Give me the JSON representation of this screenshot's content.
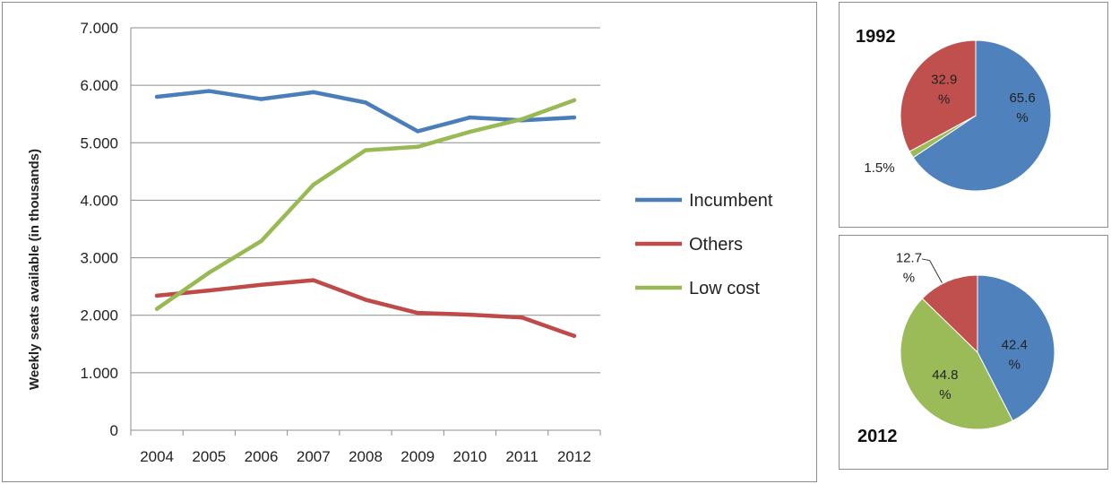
{
  "chart_data": [
    {
      "type": "line",
      "ylabel": "Weekly seats available (in thousands)",
      "xlabel": "",
      "x": [
        2004,
        2005,
        2006,
        2007,
        2008,
        2009,
        2010,
        2011,
        2012
      ],
      "x_tick_labels": [
        "2004",
        "2005",
        "2006",
        "2007",
        "2008",
        "2009",
        "2010",
        "2011",
        "2012"
      ],
      "ylim": [
        0,
        7000
      ],
      "y_ticks": [
        0,
        1000,
        2000,
        3000,
        4000,
        5000,
        6000,
        7000
      ],
      "y_tick_labels": [
        "0",
        "1.000",
        "2.000",
        "3.000",
        "4.000",
        "5.000",
        "6.000",
        "7.000"
      ],
      "grid": "horizontal",
      "legend_position": "right",
      "series": [
        {
          "name": "Incumbent",
          "color": "#4a7ebb",
          "values": [
            5800,
            5900,
            5760,
            5880,
            5700,
            5200,
            5440,
            5390,
            5440
          ]
        },
        {
          "name": "Others",
          "color": "#be4b48",
          "values": [
            2340,
            2430,
            2530,
            2610,
            2270,
            2040,
            2010,
            1960,
            1640
          ]
        },
        {
          "name": "Low cost",
          "color": "#98b954",
          "values": [
            2110,
            2740,
            3290,
            4270,
            4870,
            4930,
            5190,
            5410,
            5740
          ]
        }
      ]
    },
    {
      "type": "pie",
      "title": "1992",
      "slices": [
        {
          "value": 65.6,
          "label_lines": [
            "65.6",
            "%"
          ],
          "color": "#4f81bd"
        },
        {
          "value": 1.5,
          "label_lines": [
            "1.5%"
          ],
          "color": "#9bbb59"
        },
        {
          "value": 32.9,
          "label_lines": [
            "32.9",
            "%"
          ],
          "color": "#c0504d"
        }
      ]
    },
    {
      "type": "pie",
      "title": "2012",
      "slices": [
        {
          "value": 42.4,
          "label_lines": [
            "42.4",
            "%"
          ],
          "color": "#4f81bd"
        },
        {
          "value": 44.8,
          "label_lines": [
            "44.8",
            "%"
          ],
          "color": "#9bbb59"
        },
        {
          "value": 12.7,
          "label_lines": [
            "12.7",
            "%"
          ],
          "color": "#c0504d"
        }
      ]
    }
  ]
}
